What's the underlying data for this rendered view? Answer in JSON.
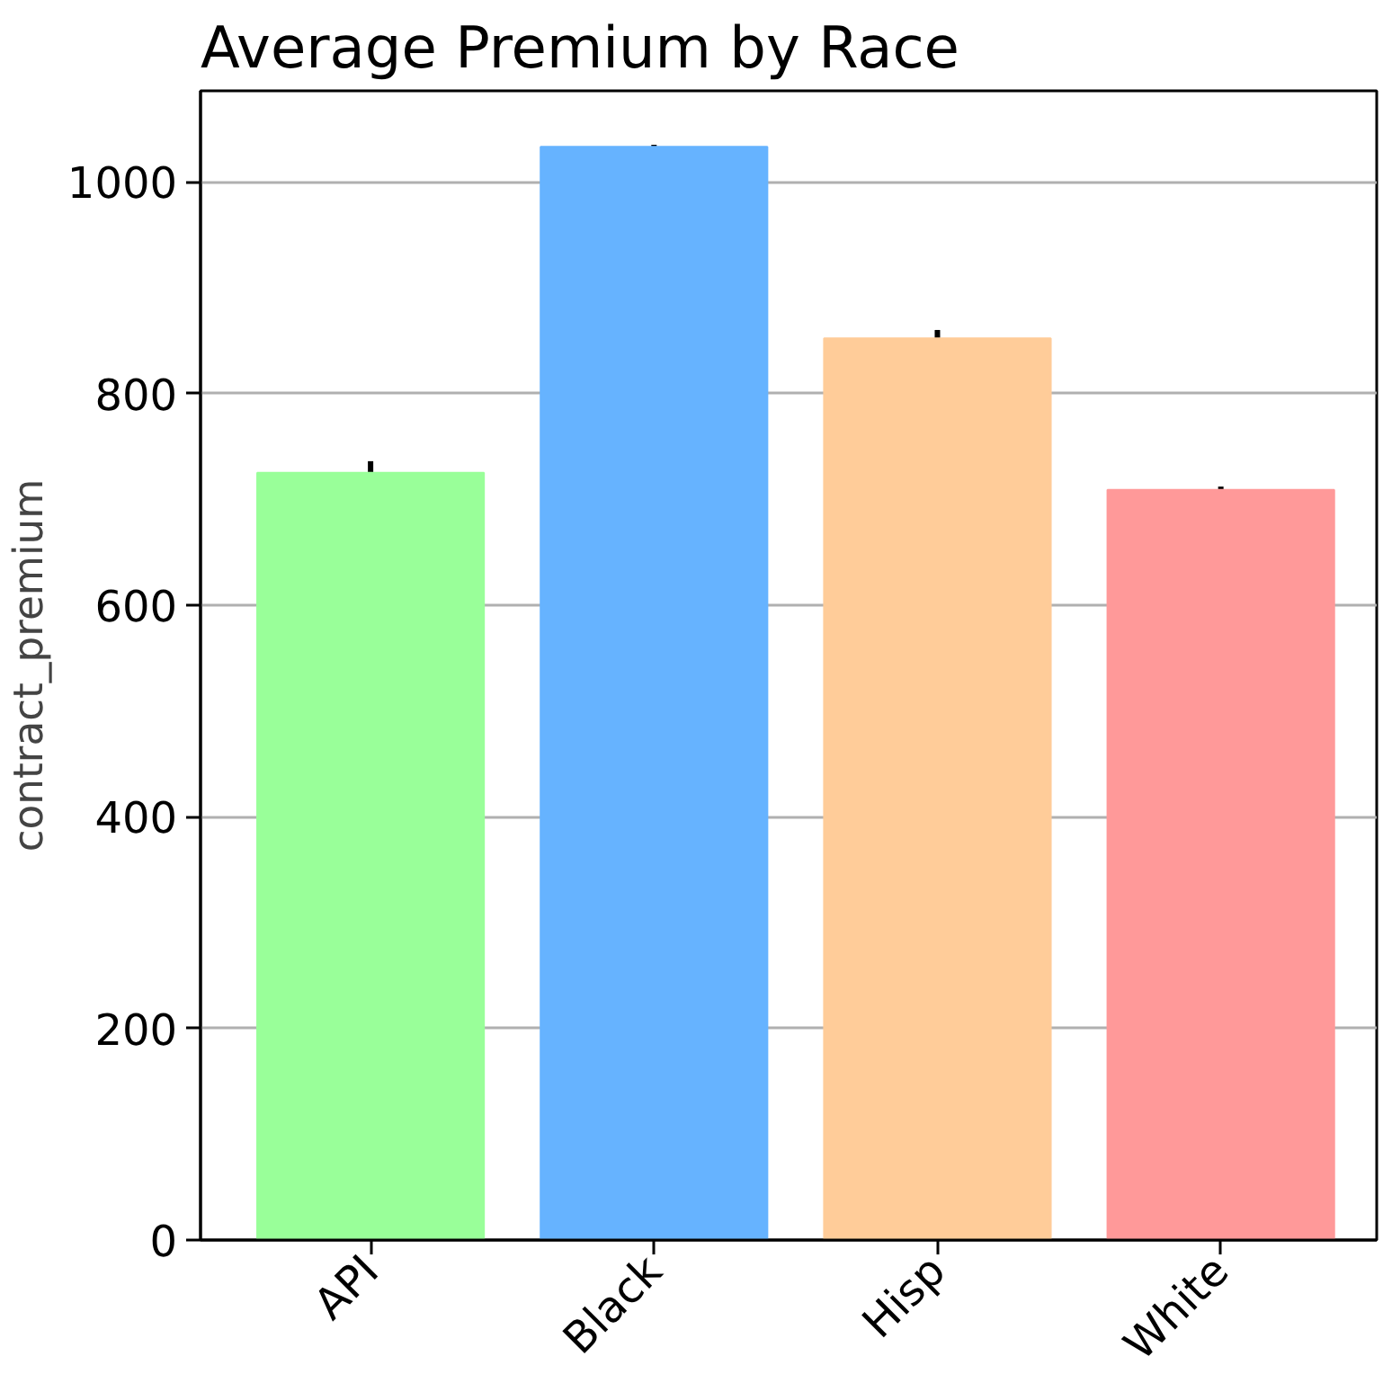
{
  "chart_data": {
    "type": "bar",
    "title": "Average Premium by Race",
    "ylabel": "contract_premium",
    "categories": [
      "API",
      "Black",
      "Hisp",
      "White"
    ],
    "values": [
      725,
      1033,
      852,
      709
    ],
    "colors": [
      "#99ff99",
      "#66b3ff",
      "#ffcc99",
      "#ff9999"
    ],
    "errors": [
      11,
      2,
      8,
      3
    ],
    "ylim": [
      0,
      1086
    ],
    "yticks": [
      0,
      200,
      400,
      600,
      800,
      1000
    ],
    "grid": "y"
  }
}
